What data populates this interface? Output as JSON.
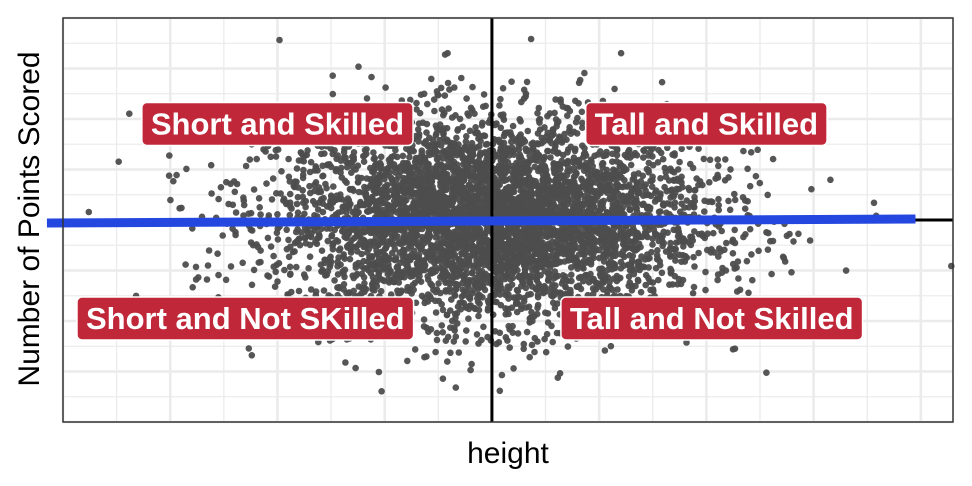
{
  "chart_data": {
    "type": "scatter",
    "xlabel": "height",
    "ylabel": "Number of Points Scored",
    "xlim": [
      -4.0,
      4.3
    ],
    "ylim": [
      -4.0,
      4.0
    ],
    "grid": true,
    "show_tick_labels": false,
    "reference_lines": {
      "x": 0,
      "y": 0
    },
    "colors": {
      "points": "#4d4d4d",
      "fit_line": "#2447e0",
      "reference_line": "#000000",
      "grid": "#ebebeb",
      "label_fill": "#c0283a",
      "label_text": "#ffffff"
    },
    "scatter_summary": {
      "n": 5000,
      "x_mean": 0,
      "x_sd": 1,
      "y_mean": 0,
      "y_sd": 1,
      "correlation": 0
    },
    "fit_line": {
      "x": [
        -4.15,
        3.95
      ],
      "y": [
        -0.06,
        0.02
      ]
    },
    "annotations": [
      {
        "text": "Short and Skilled",
        "x": -2.0,
        "y": 1.9
      },
      {
        "text": "Tall and Skilled",
        "x": 2.0,
        "y": 1.9
      },
      {
        "text": "Short and Not SKilled",
        "x": -2.3,
        "y": -1.95
      },
      {
        "text": "Tall and Not Skilled",
        "x": 2.05,
        "y": -1.95
      }
    ]
  }
}
